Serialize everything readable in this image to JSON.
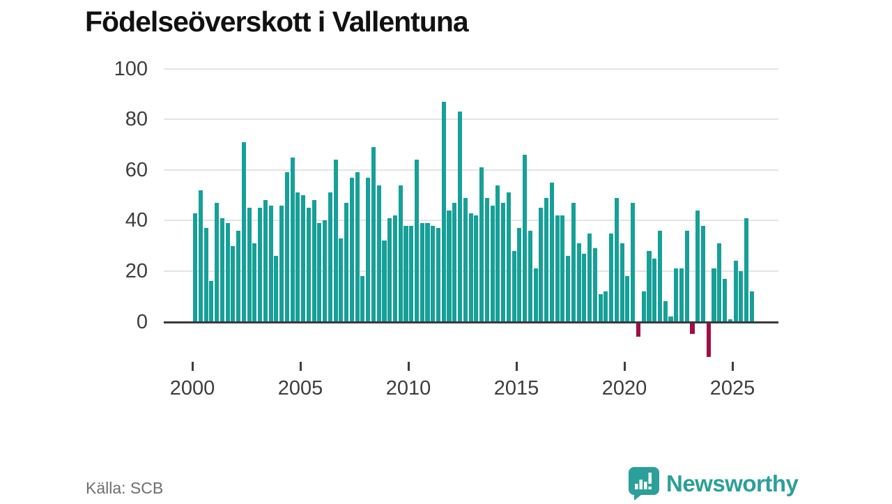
{
  "title": "Födelseöverskott i Vallentuna",
  "source": "Källa: SCB",
  "brand": {
    "name": "Newsworthy",
    "logo_icon": "speech-bubble-bar-chart"
  },
  "colors": {
    "bar_positive": "#16a098",
    "bar_negative": "#a00d45",
    "grid": "#e4e4e4",
    "axis": "#3a3a3a",
    "text": "#3d3d3d",
    "brand_teal": "#2b9f99"
  },
  "chart_data": {
    "type": "bar",
    "title": "Födelseöverskott i Vallentuna",
    "xlabel": "",
    "ylabel": "",
    "start_year": 2000,
    "frequency": "quarterly",
    "x_tick_labels": [
      "2000",
      "2005",
      "2010",
      "2015",
      "2020",
      "2025"
    ],
    "y_ticks": [
      0,
      20,
      40,
      60,
      80,
      100
    ],
    "ylim": [
      -16,
      100
    ],
    "grid": "horizontal",
    "legend": "none",
    "series": [
      {
        "name": "Födelseöverskott",
        "values": [
          43,
          52,
          37,
          16,
          47,
          41,
          39,
          30,
          36,
          71,
          45,
          31,
          45,
          48,
          46,
          26,
          46,
          59,
          65,
          51,
          50,
          45,
          48,
          39,
          40,
          51,
          64,
          33,
          47,
          57,
          59,
          18,
          57,
          69,
          54,
          32,
          41,
          42,
          54,
          38,
          38,
          64,
          39,
          39,
          38,
          37,
          87,
          44,
          47,
          83,
          49,
          43,
          42,
          61,
          49,
          46,
          54,
          47,
          51,
          28,
          37,
          66,
          36,
          21,
          45,
          49,
          55,
          42,
          42,
          26,
          47,
          31,
          27,
          35,
          29,
          11,
          12,
          35,
          49,
          31,
          18,
          47,
          -6,
          12,
          28,
          25,
          36,
          8,
          2,
          21,
          21,
          36,
          -5,
          44,
          38,
          -14,
          21,
          31,
          17,
          1,
          24,
          20,
          41,
          12
        ]
      }
    ]
  }
}
